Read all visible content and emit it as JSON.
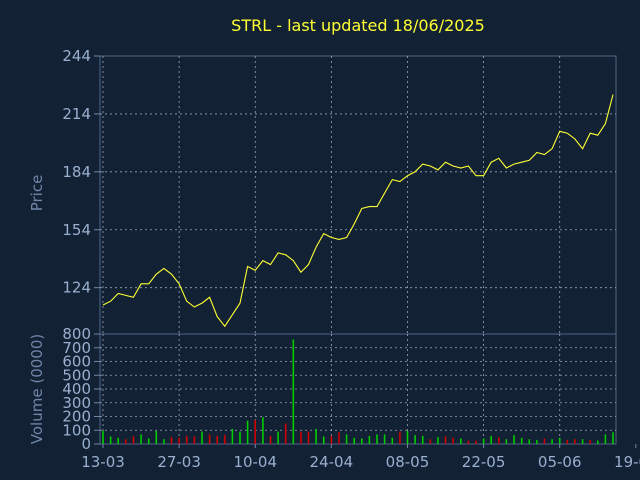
{
  "chart_data": [
    {
      "type": "line",
      "title": "STRL - last updated 18/06/2025",
      "ylabel": "Price",
      "ylim": [
        100,
        244
      ],
      "yticks": [
        244,
        214,
        184,
        154,
        124
      ],
      "grid": true,
      "line_color": "#ffff33",
      "series": [
        {
          "x": [
            "13-03",
            "14-03",
            "17-03",
            "18-03",
            "19-03",
            "20-03",
            "21-03",
            "24-03",
            "25-03",
            "26-03",
            "27-03",
            "28-03",
            "31-03",
            "01-04",
            "02-04",
            "03-04",
            "04-04",
            "07-04",
            "08-04",
            "09-04",
            "10-04",
            "11-04",
            "14-04",
            "15-04",
            "16-04",
            "17-04",
            "21-04",
            "22-04",
            "23-04",
            "24-04",
            "25-04",
            "28-04",
            "29-04",
            "30-04",
            "01-05",
            "02-05",
            "05-05",
            "06-05",
            "07-05",
            "08-05",
            "09-05",
            "12-05",
            "13-05",
            "14-05",
            "15-05",
            "16-05",
            "19-05",
            "20-05",
            "21-05",
            "22-05",
            "23-05",
            "27-05",
            "28-05",
            "29-05",
            "30-05",
            "02-06",
            "03-06",
            "04-06",
            "05-06",
            "06-06",
            "09-06",
            "10-06",
            "11-06",
            "12-06",
            "13-06",
            "16-06",
            "17-06",
            "18-06"
          ],
          "values": [
            115,
            117,
            121,
            120,
            119,
            126,
            126,
            131,
            134,
            131,
            126,
            117,
            114,
            116,
            119,
            109,
            104,
            110,
            116,
            135,
            133,
            138,
            136,
            142,
            141,
            138,
            132,
            136,
            145,
            152,
            150,
            149,
            150,
            157,
            165,
            166,
            166,
            173,
            180,
            179,
            182,
            184,
            188,
            187,
            185,
            189,
            187,
            186,
            187,
            182,
            182,
            189,
            191,
            186,
            188,
            189,
            190,
            194,
            193,
            196,
            205,
            204,
            201,
            196,
            204,
            203,
            209,
            224
          ]
        }
      ]
    },
    {
      "type": "bar",
      "ylabel": "Volume (0000)",
      "ylim": [
        0,
        800
      ],
      "yticks": [
        800,
        700,
        600,
        500,
        400,
        300,
        200,
        100,
        0
      ],
      "xticks": [
        "13-03",
        "27-03",
        "10-04",
        "24-04",
        "08-05",
        "22-05",
        "05-06",
        "19-06"
      ],
      "grid": true,
      "up_color": "#00cc00",
      "down_color": "#cc0000",
      "values": [
        95,
        55,
        45,
        35,
        55,
        70,
        40,
        95,
        35,
        50,
        45,
        60,
        55,
        90,
        70,
        60,
        65,
        110,
        90,
        170,
        175,
        195,
        60,
        90,
        150,
        760,
        90,
        90,
        110,
        55,
        60,
        85,
        70,
        45,
        40,
        60,
        70,
        70,
        45,
        90,
        95,
        65,
        60,
        35,
        50,
        55,
        45,
        40,
        25,
        25,
        40,
        60,
        50,
        35,
        65,
        45,
        35,
        30,
        40,
        35,
        45,
        30,
        35,
        35,
        30,
        25,
        70,
        85
      ],
      "directions": [
        "up",
        "up",
        "up",
        "down",
        "down",
        "up",
        "up",
        "up",
        "up",
        "down",
        "down",
        "down",
        "down",
        "up",
        "down",
        "down",
        "down",
        "up",
        "up",
        "up",
        "down",
        "up",
        "down",
        "up",
        "down",
        "up",
        "down",
        "down",
        "up",
        "up",
        "down",
        "down",
        "up",
        "up",
        "up",
        "up",
        "up",
        "up",
        "up",
        "down",
        "up",
        "up",
        "up",
        "down",
        "up",
        "down",
        "down",
        "up",
        "down",
        "down",
        "up",
        "up",
        "down",
        "up",
        "up",
        "up",
        "up",
        "up",
        "down",
        "up",
        "up",
        "down",
        "down",
        "up",
        "down",
        "up",
        "up",
        "up"
      ]
    }
  ]
}
